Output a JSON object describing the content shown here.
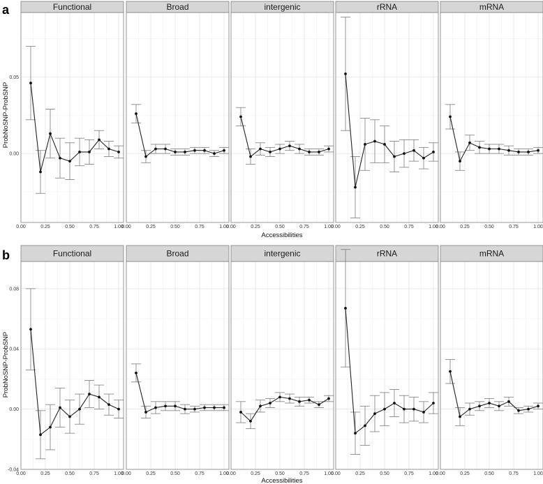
{
  "figure": {
    "panel_letters": [
      "a",
      "b"
    ]
  },
  "chart_data": [
    {
      "type": "line",
      "panel": "a",
      "facets": [
        "Functional",
        "Broad",
        "intergenic",
        "rRNA",
        "mRNA"
      ],
      "xlabel": "Accessibilities",
      "ylabel": "ProbNoSNP-ProbSNP",
      "xlim": [
        0,
        1.05
      ],
      "ylim": [
        -0.045,
        0.092
      ],
      "x_ticks": [
        0,
        0.25,
        0.5,
        0.75,
        1
      ],
      "x_tick_labels": [
        "0.00",
        "0.25",
        "0.50",
        "0.75",
        "1.00"
      ],
      "y_ticks": [
        0,
        0.05
      ],
      "y_tick_labels": [
        "0.00",
        "0.05"
      ],
      "grid": true,
      "x": [
        0.1,
        0.2,
        0.3,
        0.4,
        0.5,
        0.6,
        0.7,
        0.8,
        0.9,
        1.0
      ],
      "series": [
        {
          "facet": "Functional",
          "values": [
            0.046,
            -0.012,
            0.013,
            -0.003,
            -0.005,
            0.001,
            0.001,
            0.009,
            0.003,
            0.001
          ],
          "err": [
            0.024,
            0.014,
            0.016,
            0.013,
            0.012,
            0.009,
            0.008,
            0.006,
            0.005,
            0.004
          ]
        },
        {
          "facet": "Broad",
          "values": [
            0.026,
            -0.002,
            0.003,
            0.003,
            0.001,
            0.001,
            0.002,
            0.002,
            0.0,
            0.002
          ],
          "err": [
            0.006,
            0.004,
            0.003,
            0.003,
            0.002,
            0.002,
            0.002,
            0.002,
            0.002,
            0.002
          ]
        },
        {
          "facet": "intergenic",
          "values": [
            0.024,
            -0.002,
            0.003,
            0.001,
            0.003,
            0.005,
            0.003,
            0.001,
            0.001,
            0.003
          ],
          "err": [
            0.006,
            0.005,
            0.004,
            0.003,
            0.003,
            0.003,
            0.003,
            0.002,
            0.002,
            0.002
          ]
        },
        {
          "facet": "rRNA",
          "values": [
            0.052,
            -0.022,
            0.006,
            0.008,
            0.006,
            -0.002,
            0.0,
            0.002,
            -0.003,
            0.001
          ],
          "err": [
            0.037,
            0.02,
            0.017,
            0.014,
            0.012,
            0.01,
            0.009,
            0.007,
            0.007,
            0.006
          ]
        },
        {
          "facet": "mRNA",
          "values": [
            0.024,
            -0.005,
            0.007,
            0.004,
            0.003,
            0.003,
            0.002,
            0.001,
            0.001,
            0.002
          ],
          "err": [
            0.008,
            0.006,
            0.005,
            0.004,
            0.003,
            0.003,
            0.003,
            0.002,
            0.002,
            0.002
          ]
        }
      ]
    },
    {
      "type": "line",
      "panel": "b",
      "facets": [
        "Functional",
        "Broad",
        "intergenic",
        "rRNA",
        "mRNA"
      ],
      "xlabel": "Accessibilities",
      "ylabel": "ProbNoSNP-ProbSNP",
      "xlim": [
        0,
        1.05
      ],
      "ylim": [
        -0.04,
        0.098
      ],
      "x_ticks": [
        0,
        0.25,
        0.5,
        0.75,
        1
      ],
      "x_tick_labels": [
        "0.00",
        "0.25",
        "0.50",
        "0.75",
        "1.00"
      ],
      "y_ticks": [
        -0.04,
        0,
        0.04,
        0.08
      ],
      "y_tick_labels": [
        "-0.04",
        "0.00",
        "0.04",
        "0.08"
      ],
      "grid": true,
      "x": [
        0.1,
        0.2,
        0.3,
        0.4,
        0.5,
        0.6,
        0.7,
        0.8,
        0.9,
        1.0
      ],
      "series": [
        {
          "facet": "Functional",
          "values": [
            0.053,
            -0.017,
            -0.012,
            0.001,
            -0.005,
            0.0,
            0.01,
            0.008,
            0.003,
            0.0
          ],
          "err": [
            0.027,
            0.016,
            0.015,
            0.013,
            0.011,
            0.01,
            0.009,
            0.008,
            0.007,
            0.006
          ]
        },
        {
          "facet": "Broad",
          "values": [
            0.024,
            -0.002,
            0.001,
            0.002,
            0.002,
            0.0,
            0.0,
            0.001,
            0.001,
            0.001
          ],
          "err": [
            0.006,
            0.004,
            0.004,
            0.003,
            0.003,
            0.003,
            0.002,
            0.002,
            0.002,
            0.002
          ]
        },
        {
          "facet": "intergenic",
          "values": [
            -0.002,
            -0.008,
            0.002,
            0.004,
            0.008,
            0.007,
            0.005,
            0.006,
            0.003,
            0.007
          ],
          "err": [
            0.007,
            0.005,
            0.004,
            0.003,
            0.003,
            0.003,
            0.003,
            0.002,
            0.002,
            0.002
          ]
        },
        {
          "facet": "rRNA",
          "values": [
            0.067,
            -0.016,
            -0.011,
            -0.003,
            0.0,
            0.004,
            0.0,
            0.0,
            -0.002,
            0.004
          ],
          "err": [
            0.039,
            0.014,
            0.013,
            0.012,
            0.011,
            0.009,
            0.009,
            0.008,
            0.007,
            0.007
          ]
        },
        {
          "facet": "mRNA",
          "values": [
            0.025,
            -0.005,
            0.0,
            0.002,
            0.004,
            0.002,
            0.005,
            -0.001,
            0.0,
            0.002
          ],
          "err": [
            0.008,
            0.006,
            0.004,
            0.003,
            0.003,
            0.003,
            0.003,
            0.002,
            0.002,
            0.002
          ]
        }
      ]
    }
  ]
}
